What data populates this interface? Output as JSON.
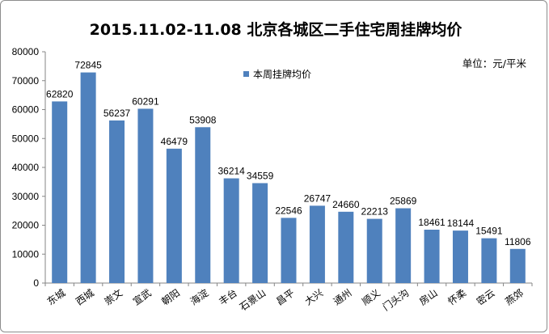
{
  "chart_data": {
    "type": "bar",
    "title": "2015.11.02-11.08 北京各城区二手住宅周挂牌均价",
    "unit": "单位：元/平米",
    "categories": [
      "东城",
      "西城",
      "崇文",
      "宣武",
      "朝阳",
      "海淀",
      "丰台",
      "石景山",
      "昌平",
      "大兴",
      "通州",
      "顺义",
      "门头沟",
      "房山",
      "怀柔",
      "密云",
      "燕郊"
    ],
    "series": [
      {
        "name": "本周挂牌均价",
        "color": "#4f81bd",
        "values": [
          62820,
          72845,
          56237,
          60291,
          46479,
          53908,
          36214,
          34559,
          22546,
          26747,
          24660,
          22213,
          25869,
          18461,
          18144,
          15491,
          11806
        ]
      }
    ],
    "xlabel": "",
    "ylabel": "",
    "ylim": [
      0,
      80000
    ],
    "yticks": [
      0,
      10000,
      20000,
      30000,
      40000,
      50000,
      60000,
      70000,
      80000
    ],
    "grid": false,
    "legend_position": "top-center"
  }
}
